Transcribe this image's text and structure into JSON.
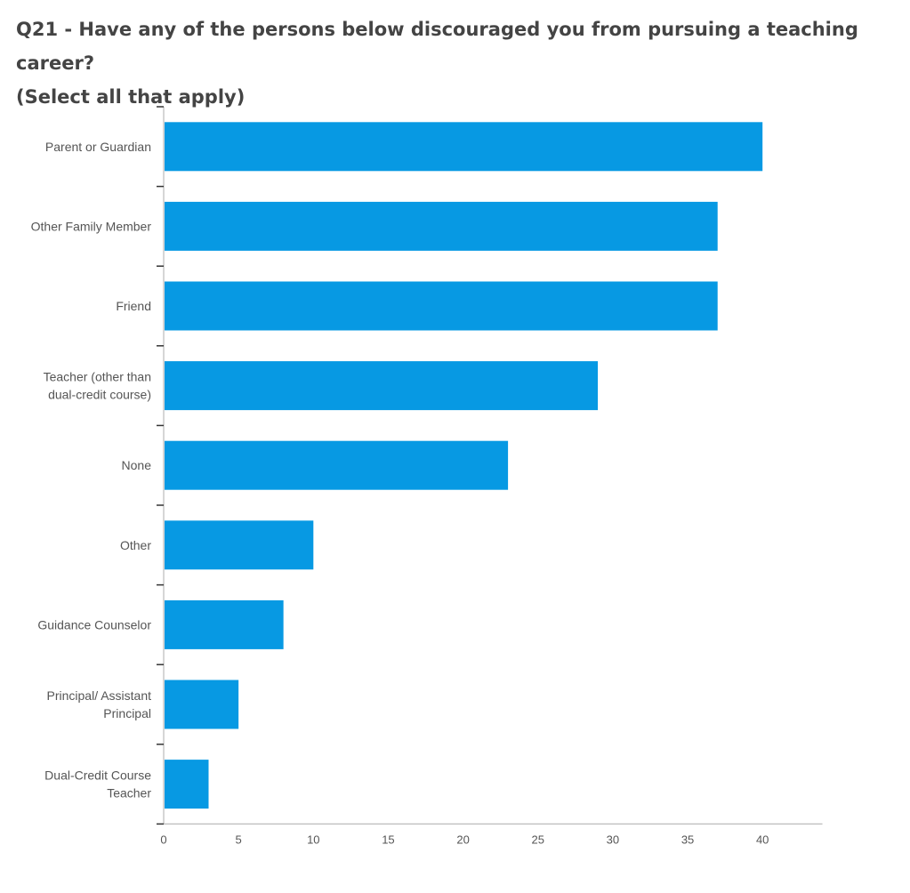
{
  "title": {
    "line1": "Q21 - Have any of the persons below discouraged you from pursuing a teaching career?",
    "line2": "(Select all that apply)"
  },
  "chart_data": {
    "type": "bar",
    "orientation": "horizontal",
    "categories": [
      [
        "Parent or Guardian"
      ],
      [
        "Other Family Member"
      ],
      [
        "Friend"
      ],
      [
        "Teacher (other than",
        "dual-credit course)"
      ],
      [
        "None"
      ],
      [
        "Other"
      ],
      [
        "Guidance Counselor"
      ],
      [
        "Principal/ Assistant",
        "Principal"
      ],
      [
        "Dual-Credit Course",
        "Teacher"
      ]
    ],
    "values": [
      40,
      37,
      37,
      29,
      23,
      10,
      8,
      5,
      3
    ],
    "x_ticks": [
      0,
      5,
      10,
      15,
      20,
      25,
      30,
      35,
      40
    ],
    "xlim": [
      0,
      44
    ],
    "xlabel": "",
    "ylabel": "",
    "bar_color": "#0799e3",
    "axis_color": "#bbbbbb",
    "grid": false,
    "legend": false
  }
}
